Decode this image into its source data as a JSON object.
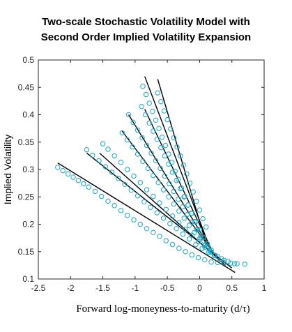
{
  "chart_data": {
    "type": "scatter",
    "title_line1": "Two-scale Stochastic Volatility Model with",
    "title_line2": "Second Order Implied Volatility Expansion",
    "xlabel": "Forward log-moneyness-to-maturity (d/τ)",
    "ylabel": "Implied Volatility",
    "xlim": [
      -2.5,
      1
    ],
    "ylim": [
      0.1,
      0.5
    ],
    "xticks": [
      "-2.5",
      "-2",
      "-1.5",
      "-1",
      "-0.5",
      "0",
      "0.5",
      "1"
    ],
    "yticks": [
      "0.1",
      "0.15",
      "0.2",
      "0.25",
      "0.3",
      "0.35",
      "0.4",
      "0.45",
      "0.5"
    ],
    "grid": false,
    "legend": "none",
    "marker_color": "#1aa7c9",
    "line_color": "#000000",
    "fitted_lines": [
      {
        "x": [
          -2.2,
          0.55
        ],
        "y": [
          0.312,
          0.112
        ]
      },
      {
        "x": [
          -1.75,
          0.5
        ],
        "y": [
          0.33,
          0.12
        ]
      },
      {
        "x": [
          -1.55,
          0.4
        ],
        "y": [
          0.33,
          0.125
        ]
      },
      {
        "x": [
          -1.2,
          0.3
        ],
        "y": [
          0.37,
          0.135
        ]
      },
      {
        "x": [
          -1.1,
          0.25
        ],
        "y": [
          0.4,
          0.14
        ]
      },
      {
        "x": [
          -0.85,
          0.2
        ],
        "y": [
          0.41,
          0.15
        ]
      },
      {
        "x": [
          -0.85,
          0.15
        ],
        "y": [
          0.47,
          0.16
        ]
      },
      {
        "x": [
          -0.65,
          0.1
        ],
        "y": [
          0.465,
          0.165
        ]
      }
    ],
    "series": [
      {
        "x": [
          -2.2,
          -2.12,
          -2.04,
          -1.96,
          -1.88,
          -1.8,
          -1.72,
          -1.62,
          -1.52,
          -1.42,
          -1.32,
          -1.22,
          -1.12,
          -1.02,
          -0.92,
          -0.82,
          -0.72,
          -0.62,
          -0.52,
          -0.42,
          -0.32,
          -0.22,
          -0.12,
          -0.02,
          0.08,
          0.18,
          0.28,
          0.38,
          0.48,
          0.58,
          0.7
        ],
        "y": [
          0.304,
          0.298,
          0.292,
          0.286,
          0.28,
          0.274,
          0.268,
          0.26,
          0.251,
          0.242,
          0.234,
          0.225,
          0.216,
          0.208,
          0.2,
          0.192,
          0.185,
          0.178,
          0.17,
          0.163,
          0.156,
          0.15,
          0.144,
          0.139,
          0.135,
          0.131,
          0.13,
          0.13,
          0.129,
          0.128,
          0.127
        ]
      },
      {
        "x": [
          -1.75,
          -1.66,
          -1.56,
          -1.46,
          -1.36,
          -1.26,
          -1.16,
          -1.06,
          -0.96,
          -0.86,
          -0.76,
          -0.66,
          -0.56,
          -0.46,
          -0.36,
          -0.26,
          -0.16,
          -0.06,
          0.04,
          0.14,
          0.24,
          0.34,
          0.44,
          0.54
        ],
        "y": [
          0.336,
          0.326,
          0.316,
          0.305,
          0.295,
          0.284,
          0.273,
          0.262,
          0.252,
          0.241,
          0.231,
          0.221,
          0.211,
          0.201,
          0.192,
          0.182,
          0.173,
          0.163,
          0.156,
          0.149,
          0.143,
          0.137,
          0.132,
          0.128
        ]
      },
      {
        "x": [
          -1.5,
          -1.42,
          -1.32,
          -1.22,
          -1.12,
          -1.02,
          -0.92,
          -0.82,
          -0.72,
          -0.62,
          -0.52,
          -0.42,
          -0.32,
          -0.22,
          -0.12,
          -0.02,
          0.08,
          0.18,
          0.28,
          0.38
        ],
        "y": [
          0.347,
          0.337,
          0.325,
          0.313,
          0.3,
          0.288,
          0.276,
          0.263,
          0.251,
          0.239,
          0.227,
          0.215,
          0.203,
          0.191,
          0.18,
          0.168,
          0.158,
          0.149,
          0.141,
          0.134
        ]
      },
      {
        "x": [
          -1.2,
          -1.12,
          -1.04,
          -0.96,
          -0.88,
          -0.8,
          -0.72,
          -0.64,
          -0.56,
          -0.48,
          -0.4,
          -0.32,
          -0.24,
          -0.16,
          -0.08,
          0.0,
          0.08,
          0.16,
          0.24
        ],
        "y": [
          0.367,
          0.354,
          0.341,
          0.328,
          0.315,
          0.302,
          0.289,
          0.276,
          0.263,
          0.25,
          0.237,
          0.224,
          0.211,
          0.198,
          0.185,
          0.173,
          0.161,
          0.151,
          0.143
        ]
      },
      {
        "x": [
          -1.1,
          -1.03,
          -0.96,
          -0.89,
          -0.82,
          -0.75,
          -0.68,
          -0.61,
          -0.54,
          -0.47,
          -0.4,
          -0.33,
          -0.26,
          -0.19,
          -0.12,
          -0.05,
          0.02,
          0.09,
          0.16,
          0.23
        ],
        "y": [
          0.4,
          0.386,
          0.372,
          0.358,
          0.344,
          0.33,
          0.316,
          0.302,
          0.288,
          0.274,
          0.26,
          0.246,
          0.232,
          0.218,
          0.204,
          0.19,
          0.176,
          0.163,
          0.152,
          0.143
        ]
      },
      {
        "x": [
          -0.9,
          -0.84,
          -0.78,
          -0.72,
          -0.66,
          -0.6,
          -0.54,
          -0.48,
          -0.42,
          -0.36,
          -0.3,
          -0.24,
          -0.18,
          -0.12,
          -0.06,
          0.0,
          0.06,
          0.12,
          0.18
        ],
        "y": [
          0.415,
          0.4,
          0.385,
          0.37,
          0.355,
          0.34,
          0.325,
          0.31,
          0.295,
          0.28,
          0.265,
          0.25,
          0.235,
          0.22,
          0.205,
          0.19,
          0.176,
          0.164,
          0.153
        ]
      },
      {
        "x": [
          -0.88,
          -0.83,
          -0.78,
          -0.73,
          -0.68,
          -0.63,
          -0.58,
          -0.53,
          -0.48,
          -0.43,
          -0.38,
          -0.33,
          -0.28,
          -0.23,
          -0.18,
          -0.13,
          -0.08,
          -0.03,
          0.02,
          0.07,
          0.12
        ],
        "y": [
          0.452,
          0.437,
          0.421,
          0.406,
          0.39,
          0.375,
          0.359,
          0.344,
          0.328,
          0.313,
          0.297,
          0.282,
          0.266,
          0.251,
          0.235,
          0.22,
          0.205,
          0.191,
          0.179,
          0.169,
          0.16
        ]
      },
      {
        "x": [
          -0.65,
          -0.6,
          -0.55,
          -0.5,
          -0.45,
          -0.4,
          -0.35,
          -0.3,
          -0.25,
          -0.2,
          -0.15,
          -0.1,
          -0.05,
          0.0,
          0.05,
          0.1
        ],
        "y": [
          0.44,
          0.424,
          0.407,
          0.391,
          0.374,
          0.358,
          0.341,
          0.325,
          0.308,
          0.292,
          0.275,
          0.259,
          0.242,
          0.226,
          0.21,
          0.195
        ]
      }
    ]
  }
}
